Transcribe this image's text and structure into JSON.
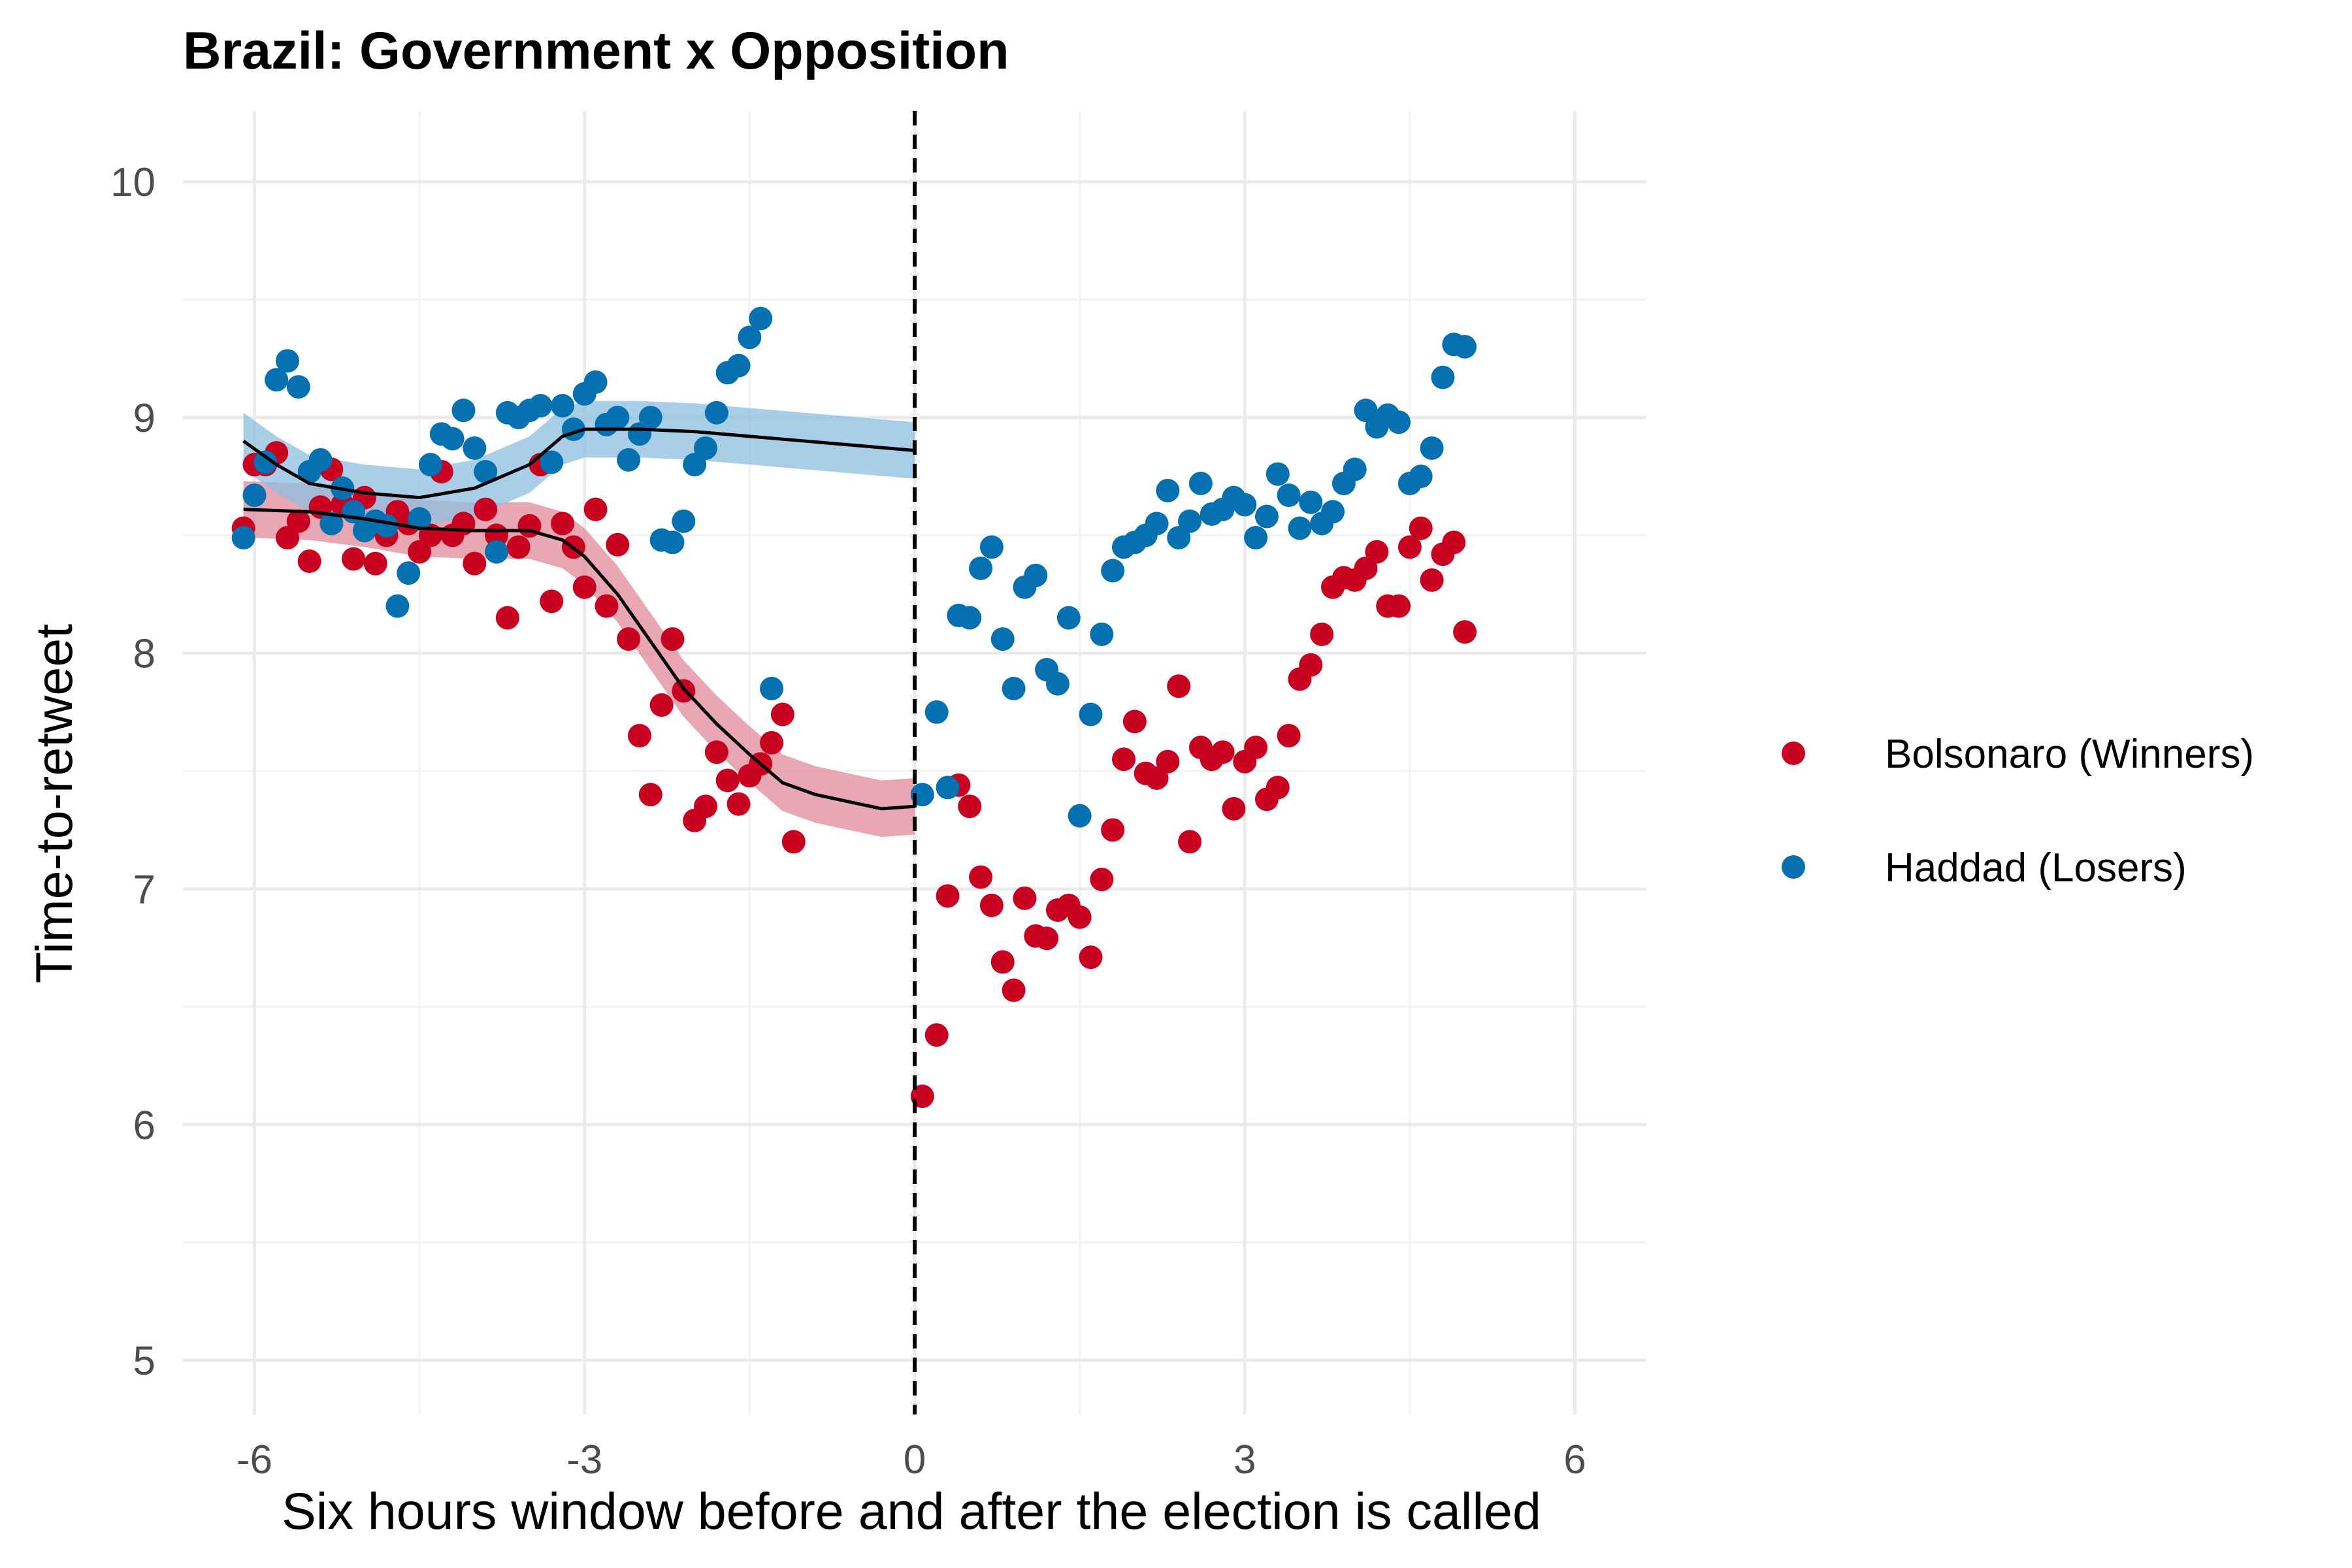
{
  "chart_data": {
    "type": "scatter",
    "title": "Brazil: Government x Opposition",
    "xlabel": "Six hours window before and after the election is called",
    "ylabel": "Time-to-retweet",
    "xlim": [
      -6.65,
      6.65
    ],
    "ylim": [
      4.77,
      10.3
    ],
    "x_ticks": [
      -6,
      -3,
      0,
      3,
      6
    ],
    "y_ticks": [
      5,
      6,
      7,
      8,
      9,
      10
    ],
    "grid": true,
    "vline_x": 0,
    "legend_position": "right",
    "colors": {
      "Bolsonaro (Winners)": "#ca0020",
      "Haddad (Losers)": "#0571b0",
      "Bolsonaro (Winners)_band": "#e28a99",
      "Haddad (Losers)_band": "#8cbfe0"
    },
    "series": [
      {
        "name": "Bolsonaro (Winners)",
        "points": [
          [
            -6.1,
            8.53
          ],
          [
            -6.0,
            8.8
          ],
          [
            -5.9,
            8.8
          ],
          [
            -5.8,
            8.85
          ],
          [
            -5.7,
            8.49
          ],
          [
            -5.6,
            8.56
          ],
          [
            -5.5,
            8.39
          ],
          [
            -5.4,
            8.62
          ],
          [
            -5.3,
            8.78
          ],
          [
            -5.2,
            8.63
          ],
          [
            -5.1,
            8.4
          ],
          [
            -5.0,
            8.66
          ],
          [
            -4.9,
            8.38
          ],
          [
            -4.8,
            8.5
          ],
          [
            -4.7,
            8.6
          ],
          [
            -4.6,
            8.55
          ],
          [
            -4.5,
            8.43
          ],
          [
            -4.4,
            8.5
          ],
          [
            -4.3,
            8.77
          ],
          [
            -4.2,
            8.5
          ],
          [
            -4.1,
            8.55
          ],
          [
            -4.0,
            8.38
          ],
          [
            -3.9,
            8.61
          ],
          [
            -3.8,
            8.5
          ],
          [
            -3.7,
            8.15
          ],
          [
            -3.6,
            8.45
          ],
          [
            -3.5,
            8.54
          ],
          [
            -3.4,
            8.8
          ],
          [
            -3.3,
            8.22
          ],
          [
            -3.2,
            8.55
          ],
          [
            -3.1,
            8.45
          ],
          [
            -3.0,
            8.28
          ],
          [
            -2.9,
            8.61
          ],
          [
            -2.8,
            8.2
          ],
          [
            -2.7,
            8.46
          ],
          [
            -2.6,
            8.06
          ],
          [
            -2.5,
            7.65
          ],
          [
            -2.4,
            7.4
          ],
          [
            -2.3,
            7.78
          ],
          [
            -2.2,
            8.06
          ],
          [
            -2.1,
            7.84
          ],
          [
            -2.0,
            7.29
          ],
          [
            -1.9,
            7.35
          ],
          [
            -1.8,
            7.58
          ],
          [
            -1.7,
            7.46
          ],
          [
            -1.6,
            7.36
          ],
          [
            -1.5,
            7.48
          ],
          [
            -1.4,
            7.53
          ],
          [
            -1.3,
            7.62
          ],
          [
            -1.2,
            7.74
          ],
          [
            -1.1,
            7.2
          ],
          [
            0.07,
            6.12
          ],
          [
            0.2,
            6.38
          ],
          [
            0.3,
            6.97
          ],
          [
            0.4,
            7.44
          ],
          [
            0.5,
            7.35
          ],
          [
            0.6,
            7.05
          ],
          [
            0.7,
            6.93
          ],
          [
            0.8,
            6.69
          ],
          [
            0.9,
            6.57
          ],
          [
            1.0,
            6.96
          ],
          [
            1.1,
            6.8
          ],
          [
            1.2,
            6.79
          ],
          [
            1.3,
            6.91
          ],
          [
            1.4,
            6.93
          ],
          [
            1.5,
            6.88
          ],
          [
            1.6,
            6.71
          ],
          [
            1.7,
            7.04
          ],
          [
            1.8,
            7.25
          ],
          [
            1.9,
            7.55
          ],
          [
            2.0,
            7.71
          ],
          [
            2.1,
            7.49
          ],
          [
            2.2,
            7.47
          ],
          [
            2.3,
            7.54
          ],
          [
            2.4,
            7.86
          ],
          [
            2.5,
            7.2
          ],
          [
            2.6,
            7.6
          ],
          [
            2.7,
            7.55
          ],
          [
            2.8,
            7.58
          ],
          [
            2.9,
            7.34
          ],
          [
            3.0,
            7.54
          ],
          [
            3.1,
            7.6
          ],
          [
            3.2,
            7.38
          ],
          [
            3.3,
            7.43
          ],
          [
            3.4,
            7.65
          ],
          [
            3.5,
            7.89
          ],
          [
            3.6,
            7.95
          ],
          [
            3.7,
            8.08
          ],
          [
            3.8,
            8.28
          ],
          [
            3.9,
            8.32
          ],
          [
            4.0,
            8.31
          ],
          [
            4.1,
            8.36
          ],
          [
            4.2,
            8.43
          ],
          [
            4.3,
            8.2
          ],
          [
            4.4,
            8.2
          ],
          [
            4.5,
            8.45
          ],
          [
            4.6,
            8.53
          ],
          [
            4.7,
            8.31
          ],
          [
            4.8,
            8.42
          ],
          [
            4.9,
            8.47
          ],
          [
            5.0,
            8.09
          ]
        ],
        "smooth": [
          [
            -6.1,
            8.61
          ],
          [
            -5.5,
            8.6
          ],
          [
            -5.0,
            8.57
          ],
          [
            -4.5,
            8.53
          ],
          [
            -4.0,
            8.52
          ],
          [
            -3.5,
            8.52
          ],
          [
            -3.2,
            8.48
          ],
          [
            -3.0,
            8.41
          ],
          [
            -2.7,
            8.25
          ],
          [
            -2.4,
            8.05
          ],
          [
            -2.1,
            7.85
          ],
          [
            -1.8,
            7.7
          ],
          [
            -1.5,
            7.57
          ],
          [
            -1.2,
            7.45
          ],
          [
            -0.9,
            7.4
          ],
          [
            -0.6,
            7.37
          ],
          [
            -0.3,
            7.34
          ],
          [
            0.0,
            7.35
          ]
        ]
      },
      {
        "name": "Haddad (Losers)",
        "points": [
          [
            -6.1,
            8.49
          ],
          [
            -6.0,
            8.67
          ],
          [
            -5.9,
            8.81
          ],
          [
            -5.8,
            9.16
          ],
          [
            -5.7,
            9.24
          ],
          [
            -5.6,
            9.13
          ],
          [
            -5.5,
            8.77
          ],
          [
            -5.4,
            8.82
          ],
          [
            -5.3,
            8.55
          ],
          [
            -5.2,
            8.7
          ],
          [
            -5.1,
            8.6
          ],
          [
            -5.0,
            8.52
          ],
          [
            -4.9,
            8.56
          ],
          [
            -4.8,
            8.54
          ],
          [
            -4.7,
            8.2
          ],
          [
            -4.6,
            8.34
          ],
          [
            -4.5,
            8.57
          ],
          [
            -4.4,
            8.8
          ],
          [
            -4.3,
            8.93
          ],
          [
            -4.2,
            8.91
          ],
          [
            -4.1,
            9.03
          ],
          [
            -4.0,
            8.87
          ],
          [
            -3.9,
            8.77
          ],
          [
            -3.8,
            8.43
          ],
          [
            -3.7,
            9.02
          ],
          [
            -3.6,
            9.0
          ],
          [
            -3.5,
            9.03
          ],
          [
            -3.4,
            9.05
          ],
          [
            -3.3,
            8.81
          ],
          [
            -3.2,
            9.05
          ],
          [
            -3.1,
            8.95
          ],
          [
            -3.0,
            9.1
          ],
          [
            -2.9,
            9.15
          ],
          [
            -2.8,
            8.97
          ],
          [
            -2.7,
            9.0
          ],
          [
            -2.6,
            8.82
          ],
          [
            -2.5,
            8.93
          ],
          [
            -2.4,
            9.0
          ],
          [
            -2.3,
            8.48
          ],
          [
            -2.2,
            8.47
          ],
          [
            -2.1,
            8.56
          ],
          [
            -2.0,
            8.8
          ],
          [
            -1.9,
            8.87
          ],
          [
            -1.8,
            9.02
          ],
          [
            -1.7,
            9.19
          ],
          [
            -1.6,
            9.22
          ],
          [
            -1.5,
            9.34
          ],
          [
            -1.4,
            9.42
          ],
          [
            -1.3,
            7.85
          ],
          [
            0.07,
            7.4
          ],
          [
            0.2,
            7.75
          ],
          [
            0.3,
            7.43
          ],
          [
            0.4,
            8.16
          ],
          [
            0.5,
            8.15
          ],
          [
            0.6,
            8.36
          ],
          [
            0.7,
            8.45
          ],
          [
            0.8,
            8.06
          ],
          [
            0.9,
            7.85
          ],
          [
            1.0,
            8.28
          ],
          [
            1.1,
            8.33
          ],
          [
            1.2,
            7.93
          ],
          [
            1.3,
            7.87
          ],
          [
            1.4,
            8.15
          ],
          [
            1.5,
            7.31
          ],
          [
            1.6,
            7.74
          ],
          [
            1.7,
            8.08
          ],
          [
            1.8,
            8.35
          ],
          [
            1.9,
            8.45
          ],
          [
            2.0,
            8.47
          ],
          [
            2.1,
            8.5
          ],
          [
            2.2,
            8.55
          ],
          [
            2.3,
            8.69
          ],
          [
            2.4,
            8.49
          ],
          [
            2.5,
            8.56
          ],
          [
            2.6,
            8.72
          ],
          [
            2.7,
            8.59
          ],
          [
            2.8,
            8.61
          ],
          [
            2.9,
            8.66
          ],
          [
            3.0,
            8.63
          ],
          [
            3.1,
            8.49
          ],
          [
            3.2,
            8.58
          ],
          [
            3.3,
            8.76
          ],
          [
            3.4,
            8.67
          ],
          [
            3.5,
            8.53
          ],
          [
            3.6,
            8.64
          ],
          [
            3.7,
            8.55
          ],
          [
            3.8,
            8.6
          ],
          [
            3.9,
            8.72
          ],
          [
            4.0,
            8.78
          ],
          [
            4.1,
            9.03
          ],
          [
            4.2,
            8.96
          ],
          [
            4.3,
            9.01
          ],
          [
            4.4,
            8.98
          ],
          [
            4.5,
            8.72
          ],
          [
            4.6,
            8.75
          ],
          [
            4.7,
            8.87
          ],
          [
            4.8,
            9.17
          ],
          [
            4.9,
            9.31
          ],
          [
            5.0,
            9.3
          ]
        ],
        "smooth": [
          [
            -6.1,
            8.9
          ],
          [
            -5.8,
            8.8
          ],
          [
            -5.5,
            8.72
          ],
          [
            -5.0,
            8.68
          ],
          [
            -4.5,
            8.66
          ],
          [
            -4.0,
            8.7
          ],
          [
            -3.5,
            8.8
          ],
          [
            -3.2,
            8.92
          ],
          [
            -3.0,
            8.95
          ],
          [
            -2.5,
            8.95
          ],
          [
            -2.0,
            8.94
          ],
          [
            -1.5,
            8.92
          ],
          [
            -1.0,
            8.9
          ],
          [
            -0.5,
            8.88
          ],
          [
            0.0,
            8.86
          ]
        ]
      }
    ]
  },
  "legend": {
    "items": [
      {
        "label": "Bolsonaro (Winners)",
        "color": "#ca0020"
      },
      {
        "label": "Haddad (Losers)",
        "color": "#0571b0"
      }
    ]
  }
}
